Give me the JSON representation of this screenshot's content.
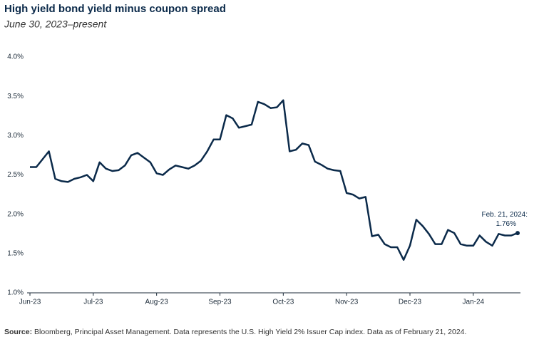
{
  "chart_data": {
    "type": "line",
    "title": "High yield bond yield minus coupon spread",
    "subtitle": "June 30, 2023–present",
    "categories": [
      "Jun-23",
      null,
      null,
      null,
      null,
      null,
      null,
      null,
      null,
      null,
      "Jul-23",
      null,
      null,
      null,
      null,
      null,
      null,
      null,
      null,
      null,
      "Aug-23",
      null,
      null,
      null,
      null,
      null,
      null,
      null,
      null,
      null,
      "Sep-23",
      null,
      null,
      null,
      null,
      null,
      null,
      null,
      null,
      null,
      "Oct-23",
      null,
      null,
      null,
      null,
      null,
      null,
      null,
      null,
      null,
      "Nov-23",
      null,
      null,
      null,
      null,
      null,
      null,
      null,
      null,
      null,
      "Dec-23",
      null,
      null,
      null,
      null,
      null,
      null,
      null,
      null,
      null,
      "Jan-24",
      null,
      null,
      null,
      null,
      null,
      null,
      null
    ],
    "series": [
      {
        "color": "#0b2a4a",
        "values": [
          2.6,
          2.6,
          2.7,
          2.8,
          2.45,
          2.42,
          2.41,
          2.45,
          2.47,
          2.5,
          2.42,
          2.66,
          2.58,
          2.55,
          2.56,
          2.62,
          2.75,
          2.78,
          2.72,
          2.66,
          2.52,
          2.5,
          2.57,
          2.62,
          2.6,
          2.58,
          2.62,
          2.68,
          2.8,
          2.95,
          2.95,
          3.26,
          3.22,
          3.1,
          3.12,
          3.14,
          3.43,
          3.4,
          3.35,
          3.36,
          3.45,
          2.8,
          2.82,
          2.9,
          2.88,
          2.67,
          2.63,
          2.58,
          2.56,
          2.55,
          2.27,
          2.25,
          2.2,
          2.22,
          1.72,
          1.74,
          1.62,
          1.58,
          1.58,
          1.42,
          1.6,
          1.93,
          1.85,
          1.75,
          1.62,
          1.62,
          1.8,
          1.76,
          1.62,
          1.6,
          1.6,
          1.73,
          1.65,
          1.6,
          1.75,
          1.73,
          1.73,
          1.76
        ]
      }
    ],
    "ylim": [
      1,
      4
    ],
    "yticks": [
      {
        "value": 1,
        "label": "1.0%"
      },
      {
        "value": 1.5,
        "label": "1.5%"
      },
      {
        "value": 2,
        "label": "2.0%"
      },
      {
        "value": 2.5,
        "label": "2.5%"
      },
      {
        "value": 3,
        "label": "3.0%"
      },
      {
        "value": 3.5,
        "label": "3.5%"
      },
      {
        "value": 4,
        "label": "4.0%"
      }
    ],
    "annotation": {
      "label": "Feb. 21, 2024:",
      "value_label": "1.76%"
    },
    "source_label": "Source:",
    "source": "Bloomberg, Principal Asset Management. Data represents the U.S. High Yield 2% Issuer Cap index. Data as of February 21, 2024."
  }
}
